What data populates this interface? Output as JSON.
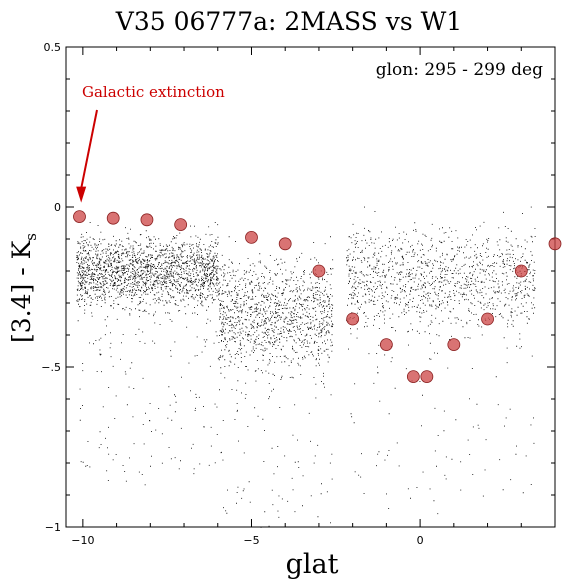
{
  "chart_data": {
    "type": "scatter",
    "title": "V35 06777a: 2MASS vs W1",
    "xlabel": "glat",
    "ylabel_main": "[3.4] - K",
    "ylabel_sub": "s",
    "xlim": [
      -10.5,
      4
    ],
    "ylim": [
      -1,
      0.5
    ],
    "x_ticks": [
      -10,
      -5,
      0
    ],
    "y_ticks": [
      -1,
      -0.5,
      0,
      0.5
    ],
    "grid": false,
    "annotation": "glon: 295 - 299 deg",
    "extinction_label": "Galactic extinction",
    "extinction_arrow_target": {
      "x": -10.05,
      "y": -0.03
    },
    "point_color": "#000000",
    "extinction_color": "#cc0000",
    "marker_color": "#cc4444",
    "series": [
      {
        "values": [
          {
            "x": -10.1,
            "y": -0.03
          },
          {
            "x": -9.1,
            "y": -0.035
          },
          {
            "x": -8.1,
            "y": -0.04
          },
          {
            "x": -7.1,
            "y": -0.055
          },
          {
            "x": -5.0,
            "y": -0.095
          },
          {
            "x": -4.0,
            "y": -0.115
          },
          {
            "x": -3.0,
            "y": -0.2
          },
          {
            "x": -2.0,
            "y": -0.35
          },
          {
            "x": -1.0,
            "y": -0.43
          },
          {
            "x": -0.2,
            "y": -0.53
          },
          {
            "x": 0.2,
            "y": -0.53
          },
          {
            "x": 1.0,
            "y": -0.43
          },
          {
            "x": 2.0,
            "y": -0.35
          },
          {
            "x": 3.0,
            "y": -0.2
          },
          {
            "x": 4.0,
            "y": -0.115
          }
        ]
      }
    ]
  }
}
